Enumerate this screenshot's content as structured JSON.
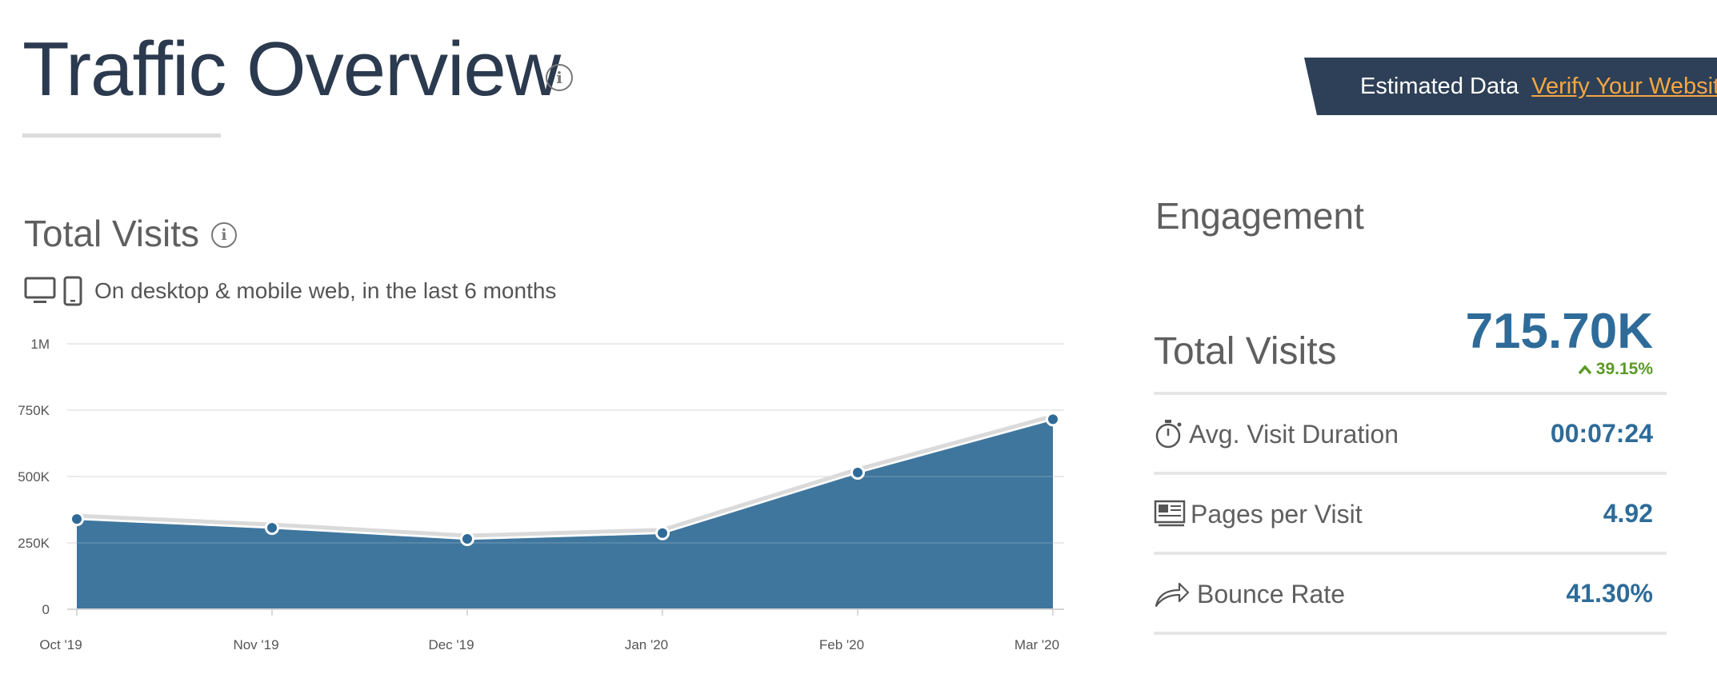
{
  "header": {
    "title": "Traffic Overview",
    "banner_text": "Estimated Data",
    "banner_link": "Verify Your Website"
  },
  "total_visits_section": {
    "title": "Total Visits",
    "subtitle": "On desktop & mobile web, in the last 6 months"
  },
  "engagement": {
    "title": "Engagement",
    "total_visits_label": "Total Visits",
    "total_visits_value": "715.70K",
    "total_visits_change": "39.15%",
    "metrics": [
      {
        "label": "Avg. Visit Duration",
        "value": "00:07:24",
        "icon": "stopwatch-icon"
      },
      {
        "label": "Pages per Visit",
        "value": "4.92",
        "icon": "pages-icon"
      },
      {
        "label": "Bounce Rate",
        "value": "41.30%",
        "icon": "bounce-arrow-icon"
      }
    ]
  },
  "colors": {
    "area_fill": "#3f769e",
    "point": "#2e6b99",
    "accent_value": "#2e6b99",
    "positive_change": "#5a9a26",
    "banner_bg": "#2e4057",
    "banner_link": "#f5a742"
  },
  "chart_data": {
    "type": "area",
    "categories": [
      "Oct '19",
      "Nov '19",
      "Dec '19",
      "Jan '20",
      "Feb '20",
      "Mar '20"
    ],
    "values": [
      340000,
      307000,
      265000,
      287000,
      515000,
      715700
    ],
    "ylim": [
      0,
      1000000
    ],
    "y_ticks": [
      0,
      250000,
      500000,
      750000,
      1000000
    ],
    "y_tick_labels": [
      "0",
      "250K",
      "500K",
      "750K",
      "1M"
    ],
    "grid": true,
    "legend": "none"
  }
}
